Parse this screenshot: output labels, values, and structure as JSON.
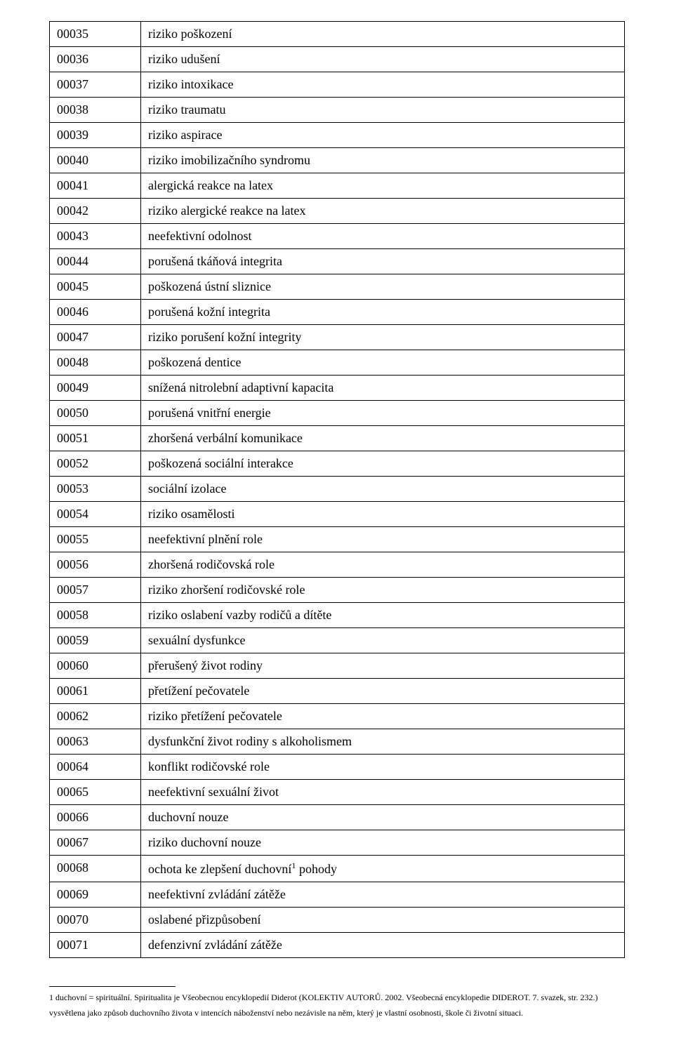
{
  "table": {
    "rows": [
      {
        "code": "00035",
        "desc": "riziko poškození"
      },
      {
        "code": "00036",
        "desc": "riziko udušení"
      },
      {
        "code": "00037",
        "desc": "riziko intoxikace"
      },
      {
        "code": "00038",
        "desc": "riziko traumatu"
      },
      {
        "code": "00039",
        "desc": "riziko aspirace"
      },
      {
        "code": "00040",
        "desc": "riziko imobilizačního syndromu"
      },
      {
        "code": "00041",
        "desc": "alergická reakce na latex"
      },
      {
        "code": "00042",
        "desc": "riziko alergické reakce na latex"
      },
      {
        "code": "00043",
        "desc": "neefektivní odolnost"
      },
      {
        "code": "00044",
        "desc": "porušená tkáňová integrita"
      },
      {
        "code": "00045",
        "desc": "poškozená ústní sliznice"
      },
      {
        "code": "00046",
        "desc": "porušená kožní integrita"
      },
      {
        "code": "00047",
        "desc": "riziko porušení kožní integrity"
      },
      {
        "code": "00048",
        "desc": "poškozená dentice"
      },
      {
        "code": "00049",
        "desc": "snížená nitrolební adaptivní kapacita"
      },
      {
        "code": "00050",
        "desc": "porušená vnitřní energie"
      },
      {
        "code": "00051",
        "desc": "zhoršená verbální komunikace"
      },
      {
        "code": "00052",
        "desc": "poškozená sociální interakce"
      },
      {
        "code": "00053",
        "desc": "sociální izolace"
      },
      {
        "code": "00054",
        "desc": "riziko osamělosti"
      },
      {
        "code": "00055",
        "desc": "neefektivní plnění role"
      },
      {
        "code": "00056",
        "desc": "zhoršená rodičovská role"
      },
      {
        "code": "00057",
        "desc": "riziko zhoršení rodičovské role"
      },
      {
        "code": "00058",
        "desc": "riziko oslabení vazby rodičů a dítěte"
      },
      {
        "code": "00059",
        "desc": "sexuální dysfunkce"
      },
      {
        "code": "00060",
        "desc": "přerušený život rodiny"
      },
      {
        "code": "00061",
        "desc": "přetížení pečovatele"
      },
      {
        "code": "00062",
        "desc": "riziko přetížení pečovatele"
      },
      {
        "code": "00063",
        "desc": "dysfunkční život rodiny s alkoholismem"
      },
      {
        "code": "00064",
        "desc": "konflikt rodičovské role"
      },
      {
        "code": "00065",
        "desc": "neefektivní sexuální život"
      },
      {
        "code": "00066",
        "desc": "duchovní nouze"
      },
      {
        "code": "00067",
        "desc": "riziko duchovní nouze"
      },
      {
        "code": "00068",
        "desc_before": "ochota ke zlepšení duchovní",
        "sup": "1",
        "desc_after": " pohody"
      },
      {
        "code": "00069",
        "desc": "neefektivní zvládání zátěže"
      },
      {
        "code": "00070",
        "desc": "oslabené přizpůsobení"
      },
      {
        "code": "00071",
        "desc": "defenzivní zvládání zátěže"
      }
    ]
  },
  "footnotes": {
    "line1": "1 duchovní = spirituální. Spiritualita je Všeobecnou encyklopedií Diderot (KOLEKTIV AUTORŮ. 2002. Všeobecná encyklopedie DIDEROT.  7. svazek, str. 232.)",
    "line2": "vysvětlena jako způsob duchovního života v intencích náboženství nebo nezávisle na něm, který je vlastní osobnosti, škole či životní situaci."
  }
}
